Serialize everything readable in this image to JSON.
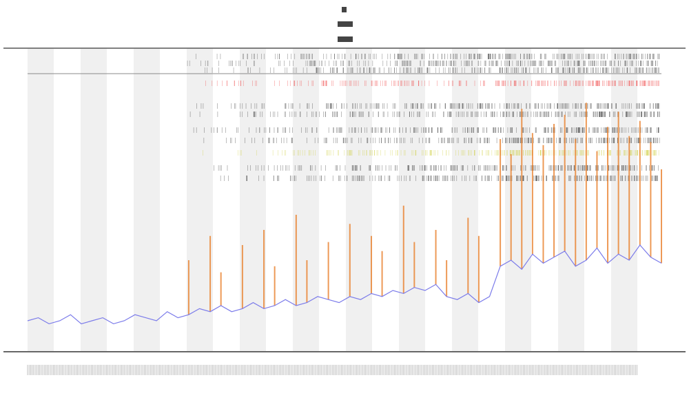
{
  "chart_data": {
    "type": "line",
    "ylim": [
      0,
      100
    ],
    "series": [
      {
        "color": "#7b7bea",
        "values": [
          10,
          11,
          9,
          10,
          12,
          9,
          10,
          11,
          9,
          10,
          12,
          11,
          10,
          13,
          11,
          12,
          14,
          13,
          15,
          13,
          14,
          16,
          14,
          15,
          17,
          15,
          16,
          18,
          17,
          16,
          18,
          17,
          19,
          18,
          20,
          19,
          21,
          20,
          22,
          18,
          17,
          19,
          16,
          18,
          28,
          30,
          27,
          32,
          29,
          31,
          33,
          28,
          30,
          34,
          29,
          32,
          30,
          35,
          31,
          29
        ]
      },
      {
        "color": "#e8781e",
        "values": [
          null,
          null,
          null,
          null,
          null,
          null,
          null,
          null,
          null,
          null,
          null,
          null,
          null,
          null,
          null,
          30,
          null,
          38,
          26,
          null,
          35,
          null,
          40,
          28,
          null,
          45,
          30,
          null,
          36,
          null,
          42,
          null,
          38,
          33,
          null,
          48,
          36,
          null,
          40,
          30,
          null,
          44,
          38,
          null,
          70,
          65,
          80,
          72,
          68,
          75,
          78,
          70,
          82,
          66,
          74,
          79,
          71,
          76,
          69,
          60
        ]
      }
    ]
  }
}
